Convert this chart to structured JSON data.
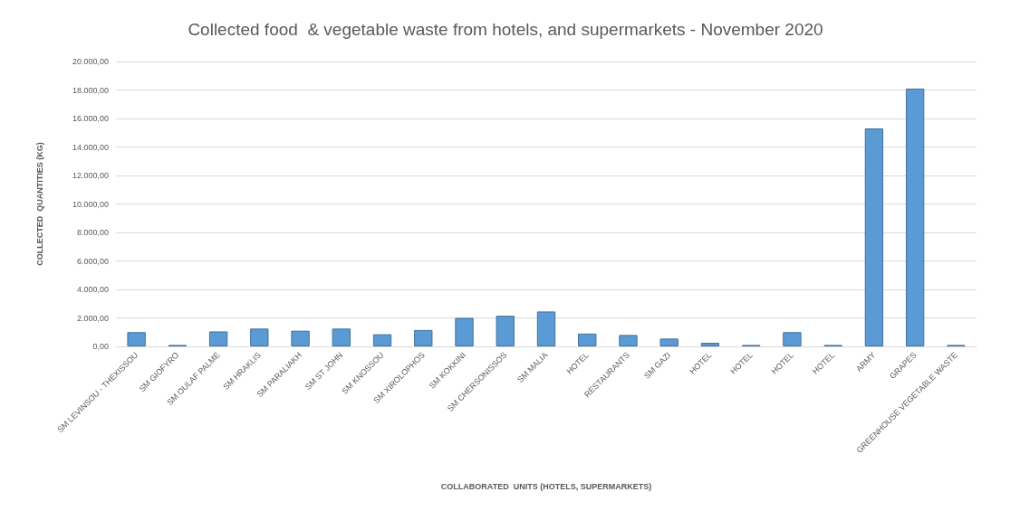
{
  "chart_data": {
    "type": "bar",
    "title": "Collected food  & vegetable waste from hotels, and supermarkets - November 2020",
    "xlabel": "COLLABORATED  UNITS (HOTELS, SUPERMARKETS)",
    "ylabel": "COLLECTED  QUANTITIES (KG)",
    "categories": [
      "SM LEVINSOU - THEXISSOU",
      "SM GIOFYRO",
      "SM OULAF PALME",
      "SM HRAKLIS",
      "SM PARALIAKH",
      "SM ST JOHN",
      "SM KNOSSOU",
      "SM XIROLOPHOS",
      "SM KOKKINI",
      "SM CHERSONISSOS",
      "SM MALIA",
      "HOTEL",
      "RESTAURANTS",
      "SM GAZI",
      "HOTEL",
      "HOTEL",
      "HOTEL",
      "HOTEL",
      "ARMY",
      "GRAPES",
      "GREENHOUSE VEGETABLE WASTE"
    ],
    "values": [
      1000,
      100,
      1050,
      1250,
      1100,
      1250,
      850,
      1150,
      2000,
      2150,
      2450,
      900,
      800,
      550,
      250,
      100,
      1000,
      100,
      15300,
      18100,
      100
    ],
    "color": "#5b9bd5",
    "ylim": [
      0,
      20000
    ],
    "yticks": [
      {
        "value": 0,
        "label": "0,00"
      },
      {
        "value": 2000,
        "label": "2.000,00"
      },
      {
        "value": 4000,
        "label": "4.000,00"
      },
      {
        "value": 6000,
        "label": "6.000,00"
      },
      {
        "value": 8000,
        "label": "8.000,00"
      },
      {
        "value": 10000,
        "label": "10.000,00"
      },
      {
        "value": 12000,
        "label": "12.000,00"
      },
      {
        "value": 14000,
        "label": "14.000,00"
      },
      {
        "value": 16000,
        "label": "16.000,00"
      },
      {
        "value": 18000,
        "label": "18.000,00"
      },
      {
        "value": 20000,
        "label": "20.000,00"
      }
    ],
    "grid": "y"
  }
}
